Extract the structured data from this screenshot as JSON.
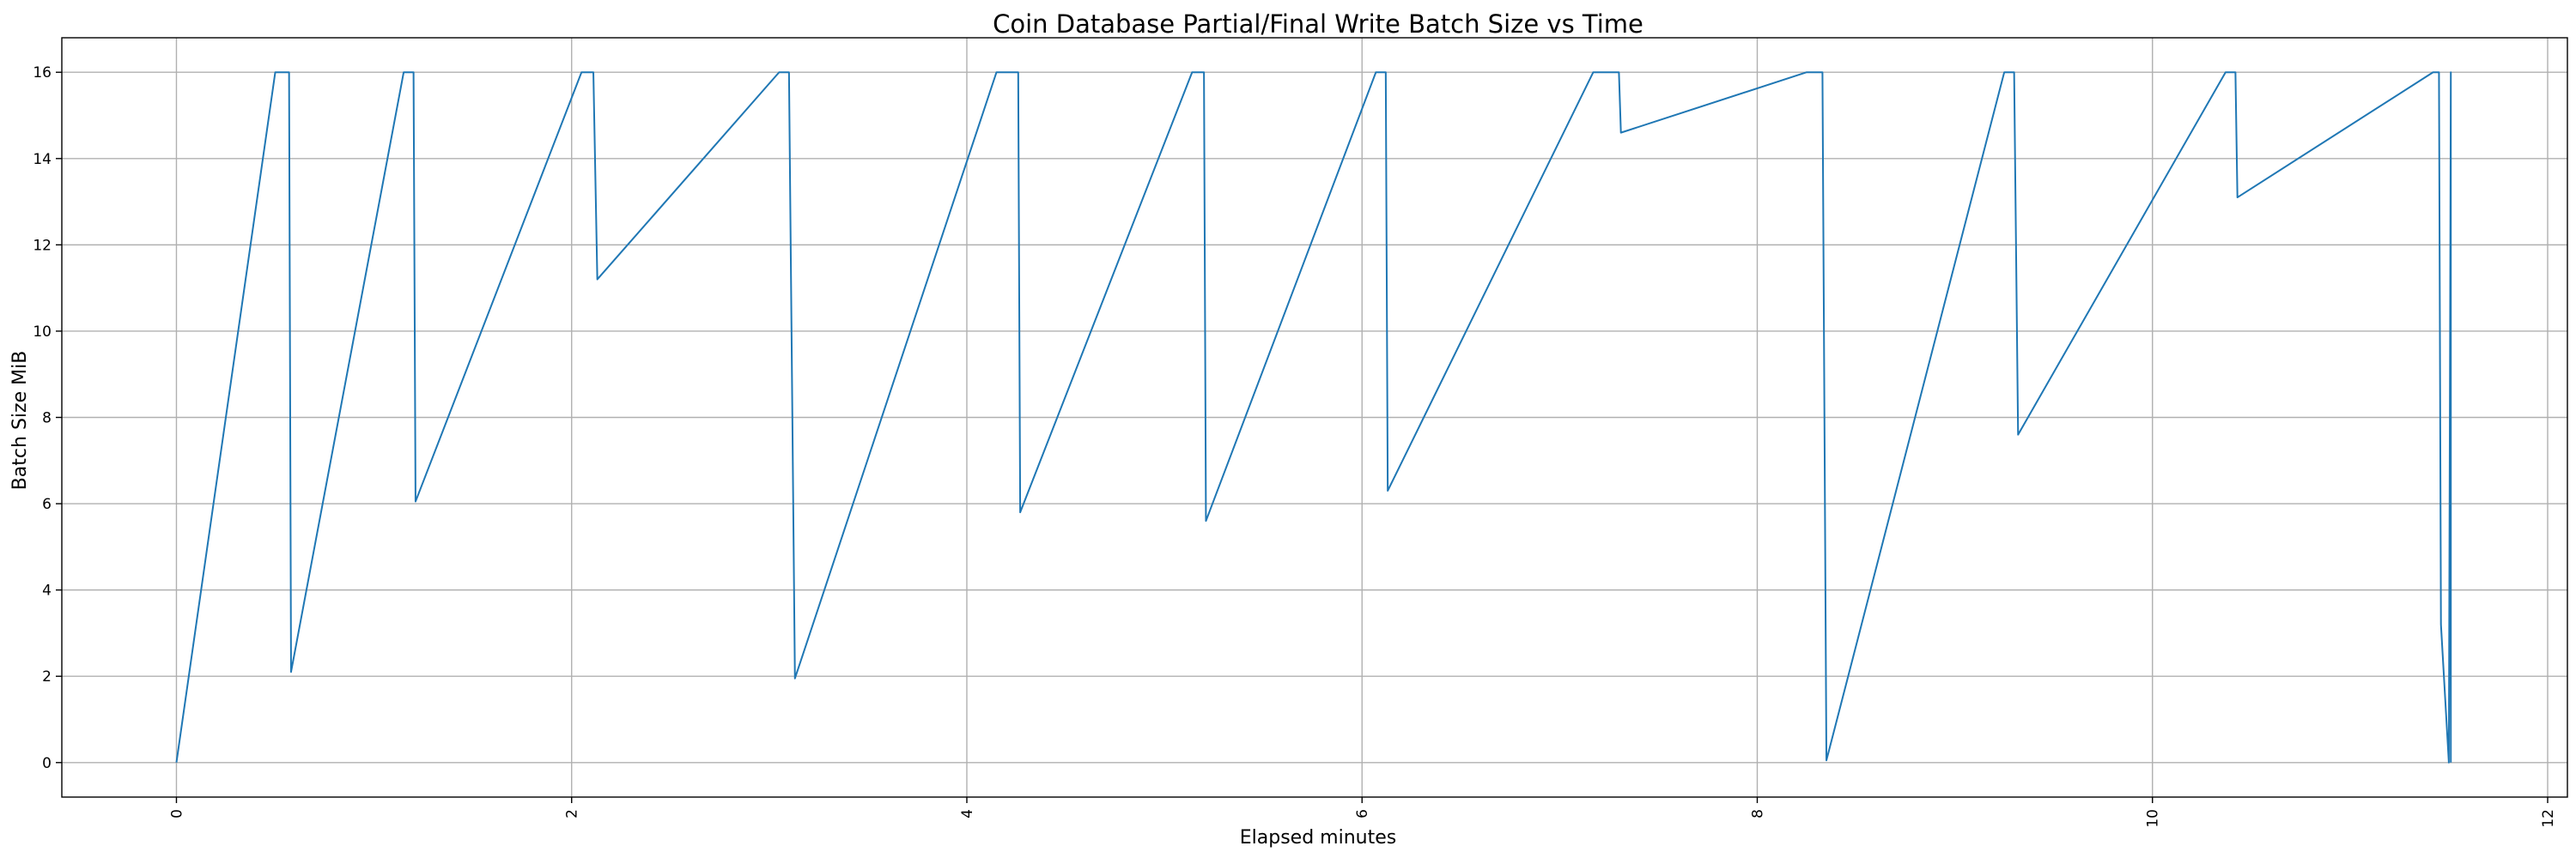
{
  "chart_data": {
    "type": "line",
    "title": "Coin Database Partial/Final Write Batch Size vs Time",
    "xlabel": "Elapsed minutes",
    "ylabel": "Batch Size MiB",
    "xlim": [
      -0.58,
      12.1
    ],
    "ylim": [
      -0.8,
      16.8
    ],
    "xticks": [
      0,
      2,
      4,
      6,
      8,
      10,
      12
    ],
    "yticks": [
      0,
      2,
      4,
      6,
      8,
      10,
      12,
      14,
      16
    ],
    "x_tick_rotation": 90,
    "grid": true,
    "series_color": "#1f77b4",
    "series": [
      {
        "x": [
          0.0,
          0.5,
          0.57,
          0.58,
          1.15,
          1.2,
          1.21,
          2.05,
          2.11,
          2.13,
          3.05,
          3.1,
          3.13,
          4.15,
          4.26,
          4.27,
          5.14,
          5.2,
          5.21,
          6.07,
          6.12,
          6.13,
          7.17,
          7.3,
          7.31,
          8.25,
          8.33,
          8.35,
          9.25,
          9.3,
          9.32,
          10.37,
          10.42,
          10.43,
          11.42,
          11.45,
          11.46,
          11.5,
          11.51,
          11.51
        ],
        "y": [
          0.0,
          16,
          16,
          2.1,
          16,
          16,
          6.05,
          16,
          16,
          11.2,
          16,
          16,
          1.95,
          16,
          16,
          5.8,
          16,
          16,
          5.6,
          16,
          16,
          6.3,
          16,
          16,
          14.6,
          16,
          16,
          0.05,
          16,
          16,
          7.6,
          16,
          16,
          13.1,
          16,
          16,
          3.2,
          0.0,
          16,
          0.0
        ]
      }
    ]
  }
}
